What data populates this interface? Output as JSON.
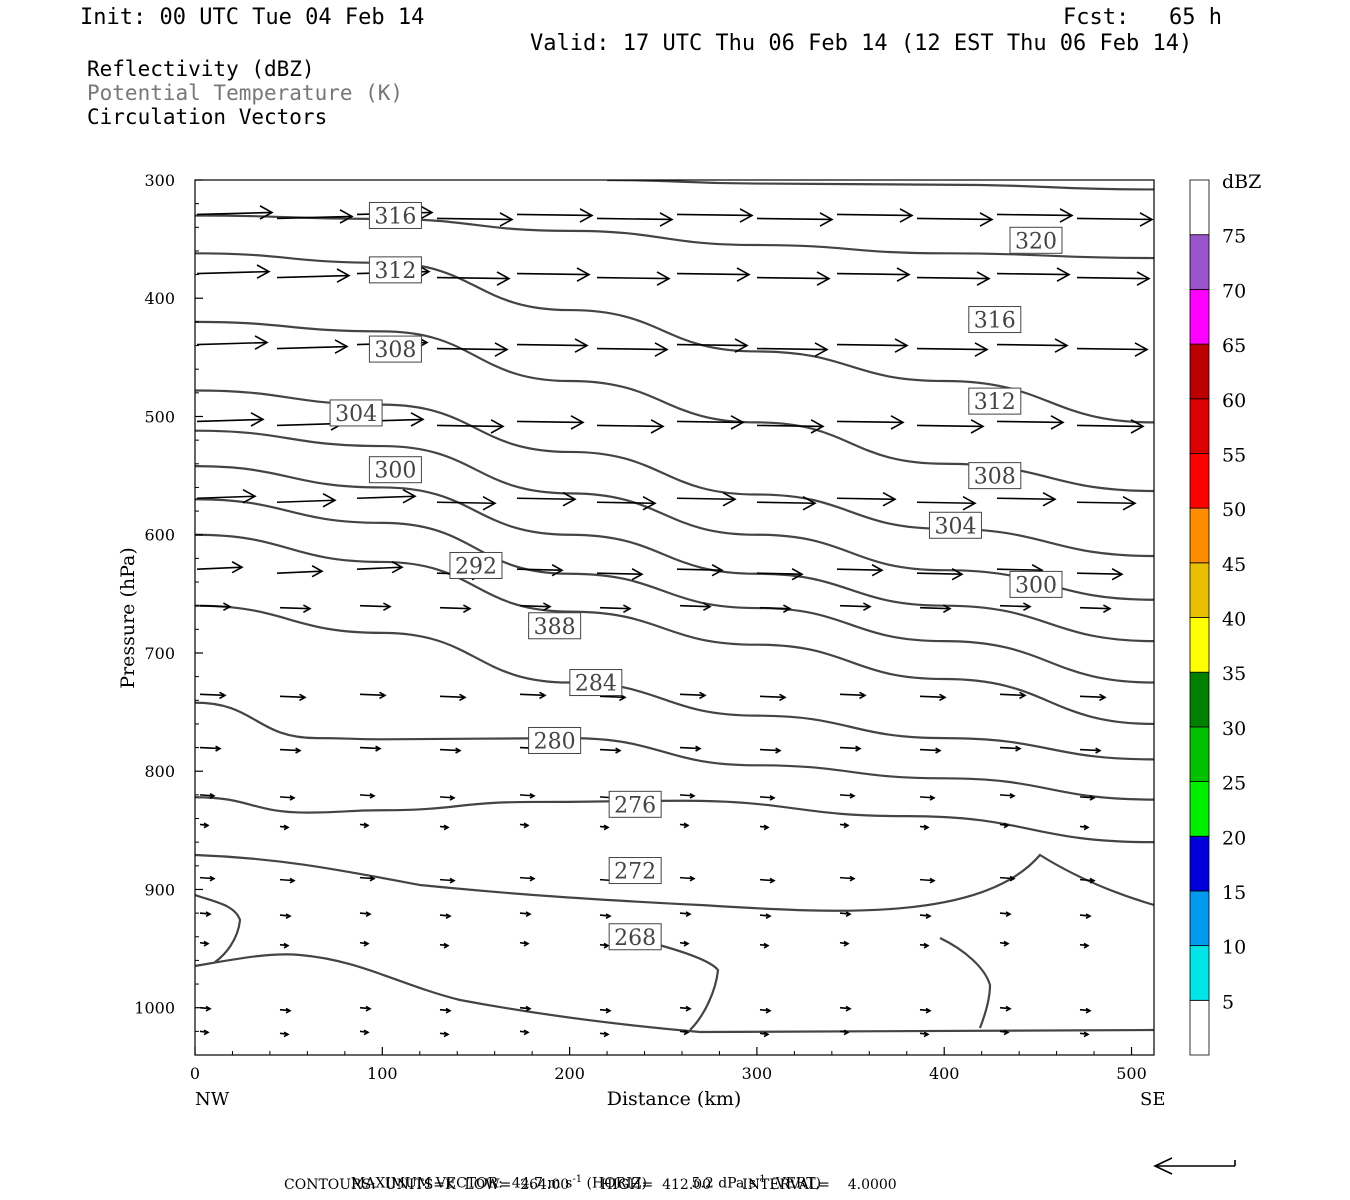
{
  "header": {
    "init": "Init: 00 UTC Tue 04 Feb 14",
    "fcst": "Fcst:   65 h",
    "valid": "Valid: 17 UTC Thu 06 Feb 14 (12 EST Thu 06 Feb 14)",
    "fields": [
      "Reflectivity (dBZ)",
      "Potential Temperature (K)",
      "Circulation Vectors"
    ]
  },
  "footer": {
    "max_vector_label": "MAXIMUM VECTOR:",
    "horiz": "44.7 m s",
    "horiz_unit": "(HORIZ)",
    "vert": "5.2 dPa s",
    "vert_unit": "(VERT)",
    "exp": "-1",
    "contours": "CONTOURS:  UNITS=K  LOW=  264.00       HIGH=  412.00       INTERVAL=    4.0000"
  },
  "colorbar": {
    "unit": "dBZ",
    "levels": [
      5,
      10,
      15,
      20,
      25,
      30,
      35,
      40,
      45,
      50,
      55,
      60,
      65,
      70,
      75
    ],
    "colors": [
      "#ffffff",
      "#00e5e5",
      "#0099ee",
      "#0000dd",
      "#00ee00",
      "#00c000",
      "#008000",
      "#ffff00",
      "#e8c000",
      "#ff8c00",
      "#ff0000",
      "#dd0000",
      "#bb0000",
      "#ff00ff",
      "#9955cc",
      "#ffffff"
    ]
  },
  "chart_data": {
    "type": "contour",
    "xlabel": "Distance (km)",
    "ylabel": "Pressure (hPa)",
    "x_left_label": "NW",
    "x_right_label": "SE",
    "xlim": [
      0,
      512
    ],
    "ylim": [
      1040,
      300
    ],
    "x_ticks": [
      0,
      100,
      200,
      300,
      400,
      500
    ],
    "y_ticks": [
      300,
      400,
      500,
      600,
      700,
      800,
      900,
      1000
    ],
    "contour_labels": [
      {
        "text": "316",
        "x": 107,
        "p": 330
      },
      {
        "text": "320",
        "x": 449,
        "p": 351
      },
      {
        "text": "312",
        "x": 107,
        "p": 376
      },
      {
        "text": "316",
        "x": 427,
        "p": 418
      },
      {
        "text": "308",
        "x": 107,
        "p": 443
      },
      {
        "text": "312",
        "x": 427,
        "p": 487
      },
      {
        "text": "304",
        "x": 86,
        "p": 497
      },
      {
        "text": "308",
        "x": 427,
        "p": 550
      },
      {
        "text": "300",
        "x": 107,
        "p": 545
      },
      {
        "text": "304",
        "x": 406,
        "p": 592
      },
      {
        "text": "292",
        "x": 150,
        "p": 626
      },
      {
        "text": "300",
        "x": 449,
        "p": 642
      },
      {
        "text": "388",
        "x": 192,
        "p": 677
      },
      {
        "text": "284",
        "x": 214,
        "p": 725
      },
      {
        "text": "280",
        "x": 192,
        "p": 774
      },
      {
        "text": "276",
        "x": 235,
        "p": 828
      },
      {
        "text": "272",
        "x": 235,
        "p": 884
      },
      {
        "text": "268",
        "x": 235,
        "p": 940
      }
    ],
    "theta_lines": [
      [
        [
          0,
          330
        ],
        [
          100,
          333
        ],
        [
          200,
          343
        ],
        [
          300,
          355
        ],
        [
          400,
          362
        ],
        [
          512,
          366
        ]
      ],
      [
        [
          220,
          300
        ],
        [
          300,
          303
        ],
        [
          400,
          304
        ],
        [
          512,
          308
        ]
      ],
      [
        [
          0,
          362
        ],
        [
          100,
          370
        ],
        [
          200,
          410
        ],
        [
          300,
          445
        ],
        [
          400,
          470
        ],
        [
          512,
          505
        ]
      ],
      [
        [
          0,
          420
        ],
        [
          100,
          428
        ],
        [
          200,
          470
        ],
        [
          300,
          505
        ],
        [
          400,
          540
        ],
        [
          512,
          563
        ]
      ],
      [
        [
          0,
          478
        ],
        [
          100,
          490
        ],
        [
          200,
          530
        ],
        [
          300,
          566
        ],
        [
          400,
          595
        ],
        [
          512,
          618
        ]
      ],
      [
        [
          0,
          512
        ],
        [
          100,
          525
        ],
        [
          200,
          565
        ],
        [
          300,
          600
        ],
        [
          400,
          630
        ],
        [
          512,
          655
        ]
      ],
      [
        [
          0,
          542
        ],
        [
          100,
          560
        ],
        [
          200,
          600
        ],
        [
          300,
          633
        ],
        [
          400,
          660
        ],
        [
          512,
          690
        ]
      ],
      [
        [
          0,
          570
        ],
        [
          100,
          590
        ],
        [
          200,
          633
        ],
        [
          300,
          662
        ],
        [
          400,
          690
        ],
        [
          512,
          725
        ]
      ],
      [
        [
          0,
          600
        ],
        [
          100,
          623
        ],
        [
          200,
          665
        ],
        [
          300,
          693
        ],
        [
          400,
          722
        ],
        [
          512,
          760
        ]
      ],
      [
        [
          0,
          660
        ],
        [
          100,
          683
        ],
        [
          200,
          725
        ],
        [
          300,
          753
        ],
        [
          400,
          772
        ],
        [
          512,
          790
        ]
      ],
      [
        [
          0,
          742
        ],
        [
          65,
          772
        ],
        [
          100,
          773
        ],
        [
          200,
          772
        ],
        [
          300,
          795
        ],
        [
          400,
          806
        ],
        [
          512,
          824
        ]
      ],
      [
        [
          0,
          822
        ],
        [
          60,
          835
        ],
        [
          100,
          833
        ],
        [
          180,
          826
        ],
        [
          260,
          825
        ],
        [
          380,
          838
        ],
        [
          512,
          860
        ]
      ]
    ],
    "vectors_upper": {
      "rows": [
        330,
        380,
        440,
        505,
        570,
        630
      ],
      "lengths": [
        75,
        72,
        70,
        66,
        58,
        45
      ]
    },
    "vectors_lower": {
      "rows": [
        660,
        735,
        780,
        820,
        845,
        890,
        920,
        945,
        1000,
        1020
      ],
      "lengths": [
        30,
        25,
        20,
        14,
        8,
        14,
        10,
        8,
        10,
        8
      ]
    },
    "ref_arrow": "max"
  }
}
